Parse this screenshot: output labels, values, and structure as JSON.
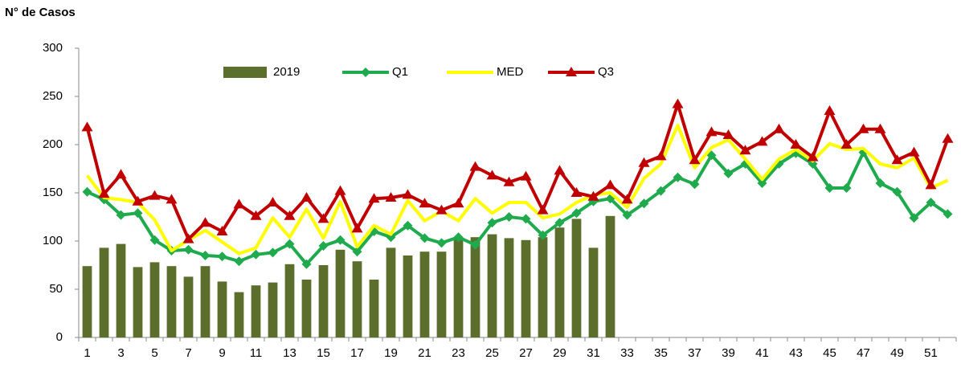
{
  "chart_data": {
    "type": "bar_line",
    "y_axis_label": "N° de Casos",
    "categories": [
      "1",
      null,
      "3",
      null,
      "5",
      null,
      "7",
      null,
      "9",
      null,
      "11",
      null,
      "13",
      null,
      "15",
      null,
      "17",
      null,
      "19",
      null,
      "21",
      null,
      "23",
      null,
      "25",
      null,
      "27",
      null,
      "29",
      null,
      "31",
      null,
      "33",
      null,
      "35",
      null,
      "37",
      null,
      "39",
      null,
      "41",
      null,
      "43",
      null,
      "45",
      null,
      "47",
      null,
      "49",
      null,
      "51",
      null
    ],
    "series": [
      {
        "name": "2019",
        "kind": "bar",
        "color": "#5b6e2b",
        "values": [
          74,
          93,
          97,
          73,
          78,
          74,
          63,
          74,
          58,
          47,
          54,
          57,
          76,
          60,
          75,
          91,
          79,
          60,
          93,
          85,
          89,
          89,
          104,
          104,
          107,
          103,
          101,
          104,
          114,
          123,
          93,
          126,
          null,
          null,
          null,
          null,
          null,
          null,
          null,
          null,
          null,
          null,
          null,
          null,
          null,
          null,
          null,
          null,
          null,
          null,
          null,
          null
        ]
      },
      {
        "name": "Q1",
        "kind": "line",
        "marker": "diamond",
        "color": "#1faa4e",
        "values": [
          151,
          143,
          127,
          129,
          101,
          90,
          91,
          85,
          84,
          79,
          86,
          88,
          97,
          76,
          95,
          101,
          89,
          110,
          104,
          116,
          103,
          98,
          104,
          96,
          119,
          125,
          123,
          106,
          119,
          129,
          141,
          144,
          127,
          139,
          152,
          166,
          159,
          189,
          170,
          180,
          160,
          180,
          191,
          180,
          155,
          155,
          192,
          160,
          151,
          124,
          140,
          128
        ]
      },
      {
        "name": "MED",
        "kind": "line",
        "marker": "none",
        "color": "#ffff00",
        "values": [
          168,
          145,
          143,
          140,
          122,
          90,
          101,
          111,
          99,
          87,
          93,
          124,
          104,
          133,
          103,
          141,
          94,
          116,
          107,
          142,
          121,
          131,
          121,
          144,
          129,
          140,
          140,
          124,
          128,
          140,
          148,
          150,
          135,
          165,
          180,
          220,
          176,
          197,
          205,
          185,
          164,
          185,
          195,
          183,
          201,
          195,
          196,
          180,
          176,
          186,
          155,
          163
        ]
      },
      {
        "name": "Q3",
        "kind": "line",
        "marker": "triangle",
        "color": "#c00000",
        "values": [
          218,
          149,
          169,
          141,
          147,
          143,
          102,
          119,
          110,
          138,
          126,
          140,
          126,
          145,
          123,
          152,
          113,
          144,
          145,
          148,
          139,
          132,
          139,
          177,
          168,
          161,
          167,
          132,
          173,
          150,
          146,
          158,
          143,
          181,
          188,
          242,
          184,
          213,
          210,
          194,
          203,
          216,
          200,
          187,
          235,
          200,
          216,
          216,
          184,
          192,
          158,
          206
        ]
      }
    ],
    "ylim": [
      0,
      300
    ],
    "yticks": [
      0,
      50,
      100,
      150,
      200,
      250,
      300
    ],
    "grid": false
  }
}
